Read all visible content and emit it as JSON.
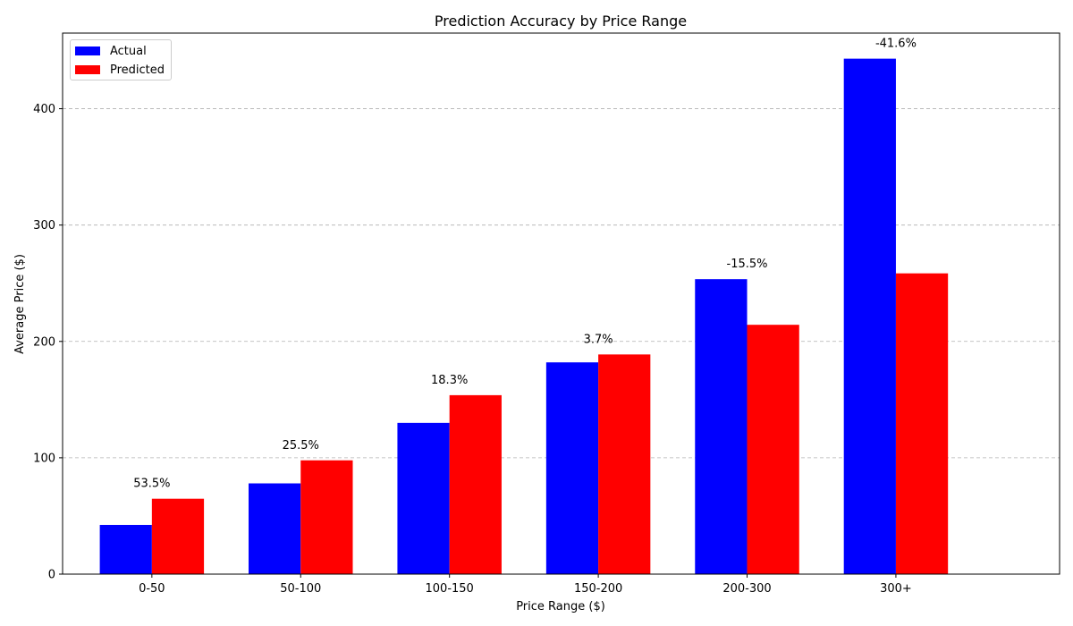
{
  "chart_data": {
    "type": "bar",
    "title": "Prediction Accuracy by Price Range",
    "xlabel": "Price Range ($)",
    "ylabel": "Average Price ($)",
    "categories": [
      "0-50",
      "50-100",
      "100-150",
      "150-200",
      "200-300",
      "300+"
    ],
    "series": [
      {
        "name": "Actual",
        "color": "#0000ff",
        "values": [
          42.3,
          78.0,
          130.0,
          182.0,
          253.5,
          443.0
        ]
      },
      {
        "name": "Predicted",
        "color": "#ff0000",
        "values": [
          64.8,
          97.8,
          153.8,
          188.8,
          214.3,
          258.5
        ]
      }
    ],
    "annotations": [
      "53.5%",
      "25.5%",
      "18.3%",
      "3.7%",
      "-15.5%",
      "-41.6%"
    ],
    "ylim": [
      0,
      465
    ],
    "yticks": [
      0,
      100,
      200,
      300,
      400
    ],
    "grid": "y-dashed",
    "legend_position": "top-left"
  }
}
